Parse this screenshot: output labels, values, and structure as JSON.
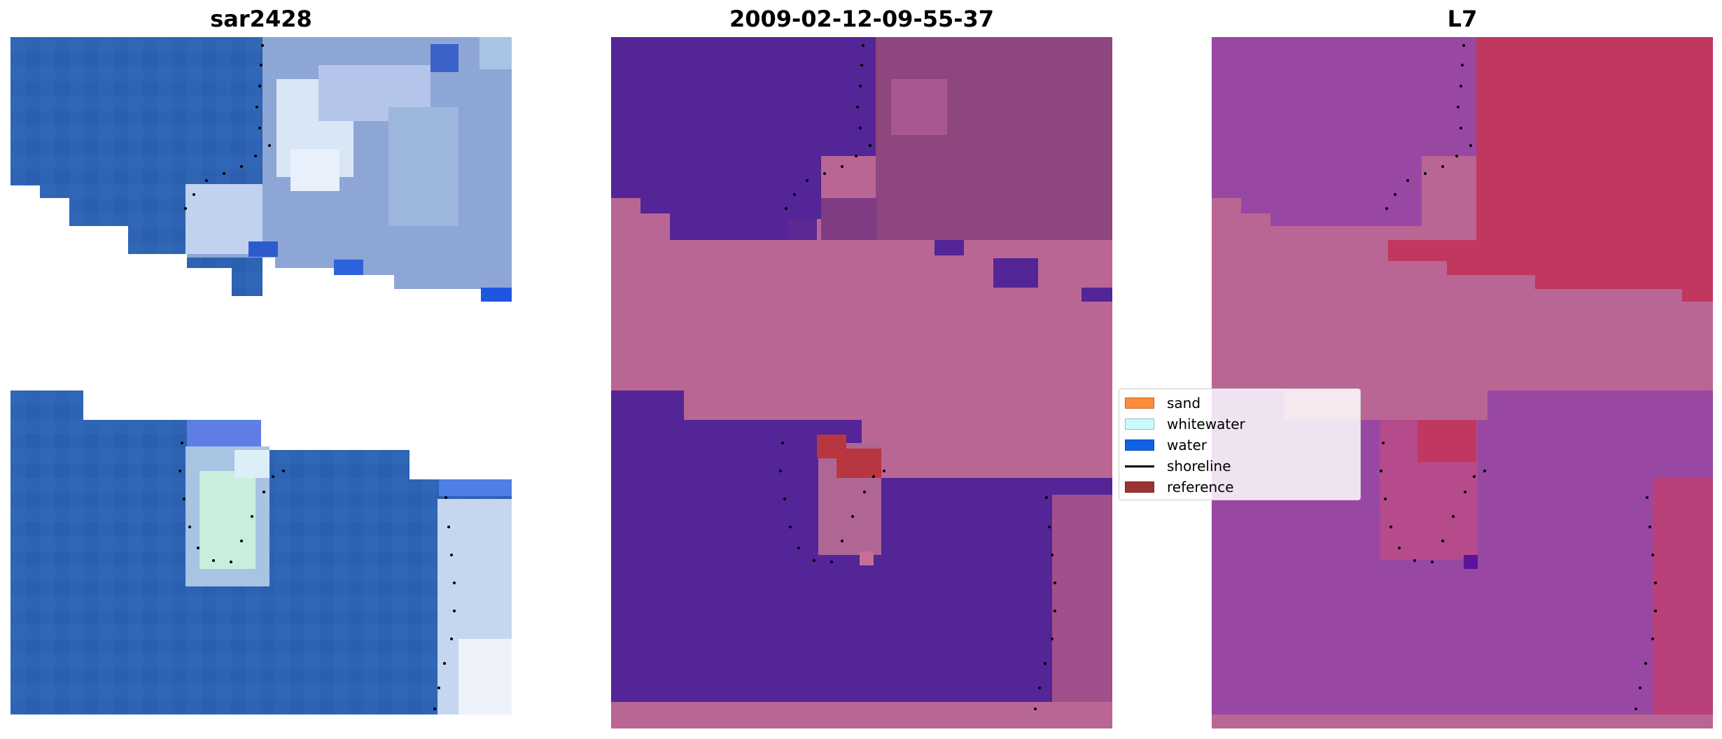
{
  "panels": [
    {
      "title": "sar2428"
    },
    {
      "title": "2009-02-12-09-55-37"
    },
    {
      "title": "L7"
    }
  ],
  "legend": {
    "items": [
      {
        "label": "sand",
        "color": "#ff8c3b"
      },
      {
        "label": "whitewater",
        "color": "#c8fcfb"
      },
      {
        "label": "water",
        "color": "#1060e8"
      },
      {
        "label": "shoreline",
        "color": "#000000"
      },
      {
        "label": "reference",
        "color": "#9b3330"
      }
    ]
  },
  "colors": {
    "image_water": "#2e63b3",
    "image_foam": "#c8dcf0",
    "class_water": "#532597",
    "class_land": "#ba6694",
    "class_reference": "#b8363f",
    "l7_water": "#9848a3",
    "l7_land": "#c03760"
  }
}
